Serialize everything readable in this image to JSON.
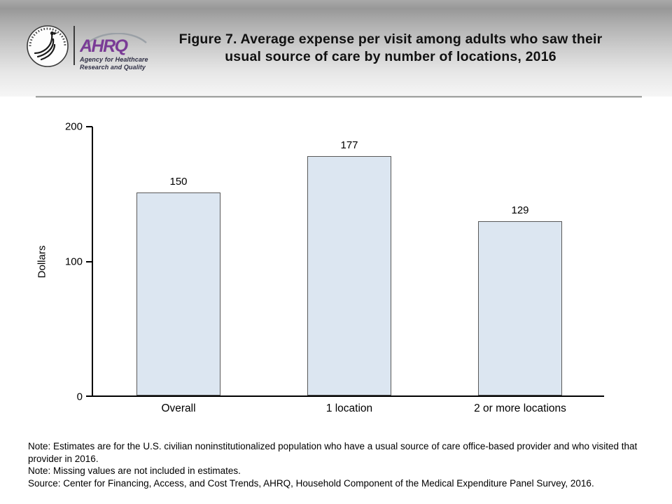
{
  "header": {
    "logo": {
      "org_abbr": "AHRQ",
      "tagline_line1": "Agency for Healthcare",
      "tagline_line2": "Research and Quality"
    },
    "title_line1": "Figure 7. Average expense per visit among adults who saw their",
    "title_line2": "usual source of care by number of locations, 2016"
  },
  "chart_data": {
    "type": "bar",
    "title": "Figure 7. Average expense per visit among adults who saw their usual source of care by number of locations, 2016",
    "categories": [
      "Overall",
      "1 location",
      "2 or more locations"
    ],
    "values": [
      150,
      177,
      129
    ],
    "xlabel": "",
    "ylabel": "Dollars",
    "ylim": [
      0,
      200
    ],
    "yticks": [
      0,
      100,
      200
    ],
    "grid": false,
    "legend": "none",
    "bar_fill": "#DCE6F1",
    "bar_border": "#595959"
  },
  "footnotes": {
    "note1": "Note: Estimates are for the U.S. civilian noninstitutionalized population who have a usual source of care office-based provider and who visited that provider in 2016.",
    "note2": "Note: Missing values are not included in estimates.",
    "source": "Source: Center for Financing, Access, and Cost Trends, AHRQ, Household Component of the Medical Expenditure Panel Survey, 2016."
  }
}
